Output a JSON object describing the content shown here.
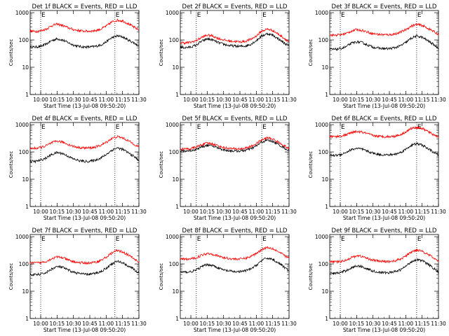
{
  "figure": {
    "xlabel": "Start Time (13-Jul-08 09:50:20)",
    "ylabel": "Counts/sec"
  },
  "axes": {
    "x_ticks": [
      "10:00",
      "10:15",
      "10:30",
      "10:45",
      "11:00",
      "11:15",
      "11:30"
    ],
    "y_ticks": [
      "1",
      "10",
      "100",
      "1000"
    ],
    "y_scale": "log",
    "ylim": [
      1,
      1200
    ],
    "xlim": [
      "09:50:20",
      "11:30:00"
    ]
  },
  "chart_data": [
    {
      "type": "line",
      "title": "Det 1f BLACK = Events, RED = LLD",
      "x": [
        "09:50",
        "09:55",
        "10:00",
        "10:05",
        "10:10",
        "10:15",
        "10:20",
        "10:25",
        "10:30",
        "10:35",
        "10:40",
        "10:45",
        "10:50",
        "10:55",
        "11:00",
        "11:05",
        "11:10",
        "11:15",
        "11:20",
        "11:25",
        "11:30"
      ],
      "series": [
        {
          "name": "Events",
          "color": "#000000",
          "values": [
            55,
            55,
            58,
            70,
            95,
            110,
            100,
            80,
            65,
            58,
            55,
            55,
            58,
            65,
            85,
            120,
            140,
            130,
            100,
            80,
            60
          ]
        },
        {
          "name": "LLD",
          "color": "#ff0000",
          "values": [
            210,
            205,
            215,
            250,
            330,
            380,
            340,
            280,
            240,
            220,
            210,
            210,
            220,
            250,
            320,
            450,
            530,
            500,
            400,
            300,
            230
          ]
        }
      ],
      "vlines": [
        "10:00",
        "11:08"
      ],
      "markers": [
        "E",
        "E"
      ]
    },
    {
      "type": "line",
      "title": "Det 2f BLACK = Events, RED = LLD",
      "x": [
        "09:50",
        "09:55",
        "10:00",
        "10:05",
        "10:10",
        "10:15",
        "10:20",
        "10:25",
        "10:30",
        "10:35",
        "10:40",
        "10:45",
        "10:50",
        "10:55",
        "11:00",
        "11:05",
        "11:10",
        "11:15",
        "11:20",
        "11:25",
        "11:30"
      ],
      "series": [
        {
          "name": "Events",
          "color": "#000000",
          "values": [
            55,
            52,
            55,
            65,
            90,
            110,
            100,
            80,
            70,
            62,
            60,
            58,
            60,
            70,
            95,
            140,
            170,
            150,
            110,
            80,
            60
          ]
        },
        {
          "name": "LLD",
          "color": "#ff0000",
          "values": [
            80,
            78,
            82,
            95,
            125,
            150,
            140,
            115,
            100,
            92,
            88,
            85,
            90,
            105,
            140,
            210,
            250,
            225,
            165,
            120,
            85
          ]
        }
      ],
      "vlines": [
        "10:05",
        "11:05"
      ],
      "markers": [
        "E",
        "E"
      ]
    },
    {
      "type": "line",
      "title": "Det 3f BLACK = Events, RED = LLD",
      "x": [
        "09:50",
        "09:55",
        "10:00",
        "10:05",
        "10:10",
        "10:15",
        "10:20",
        "10:25",
        "10:30",
        "10:35",
        "10:40",
        "10:45",
        "10:50",
        "10:55",
        "11:00",
        "11:05",
        "11:10",
        "11:15",
        "11:20",
        "11:25",
        "11:30"
      ],
      "series": [
        {
          "name": "Events",
          "color": "#000000",
          "values": [
            45,
            45,
            48,
            55,
            75,
            85,
            80,
            65,
            55,
            50,
            48,
            48,
            52,
            60,
            80,
            115,
            140,
            125,
            95,
            70,
            50
          ]
        },
        {
          "name": "LLD",
          "color": "#ff0000",
          "values": [
            150,
            150,
            155,
            170,
            210,
            240,
            225,
            195,
            170,
            160,
            155,
            155,
            165,
            190,
            240,
            320,
            370,
            340,
            270,
            210,
            160
          ]
        }
      ],
      "vlines": [
        "10:00",
        "11:10"
      ],
      "markers": [
        "E",
        "E"
      ]
    },
    {
      "type": "line",
      "title": "Det 4f BLACK = Events, RED = LLD",
      "x": [
        "09:50",
        "09:55",
        "10:00",
        "10:05",
        "10:10",
        "10:15",
        "10:20",
        "10:25",
        "10:30",
        "10:35",
        "10:40",
        "10:45",
        "10:50",
        "10:55",
        "11:00",
        "11:05",
        "11:10",
        "11:15",
        "11:20",
        "11:25",
        "11:30"
      ],
      "series": [
        {
          "name": "Events",
          "color": "#000000",
          "values": [
            45,
            45,
            50,
            60,
            80,
            95,
            88,
            70,
            55,
            48,
            45,
            45,
            50,
            60,
            80,
            115,
            140,
            125,
            95,
            70,
            50
          ]
        },
        {
          "name": "LLD",
          "color": "#ff0000",
          "values": [
            135,
            135,
            145,
            170,
            215,
            250,
            230,
            190,
            160,
            145,
            140,
            140,
            150,
            175,
            225,
            310,
            360,
            330,
            260,
            200,
            150
          ]
        }
      ],
      "vlines": [
        "10:00",
        "11:08"
      ],
      "markers": [
        "E",
        "E"
      ]
    },
    {
      "type": "line",
      "title": "Det 5f BLACK = Events, RED = LLD",
      "x": [
        "09:50",
        "09:55",
        "10:00",
        "10:05",
        "10:10",
        "10:15",
        "10:20",
        "10:25",
        "10:30",
        "10:35",
        "10:40",
        "10:45",
        "10:50",
        "10:55",
        "11:00",
        "11:05",
        "11:10",
        "11:15",
        "11:20",
        "11:25",
        "11:30"
      ],
      "series": [
        {
          "name": "Events",
          "color": "#000000",
          "values": [
            110,
            108,
            112,
            125,
            155,
            175,
            165,
            140,
            120,
            112,
            108,
            108,
            115,
            130,
            165,
            230,
            270,
            245,
            190,
            145,
            110
          ]
        },
        {
          "name": "LLD",
          "color": "#ff0000",
          "values": [
            130,
            128,
            132,
            150,
            185,
            210,
            198,
            168,
            145,
            135,
            130,
            130,
            138,
            158,
            200,
            275,
            330,
            300,
            230,
            175,
            130
          ]
        }
      ],
      "vlines": [
        "10:05",
        "11:05"
      ],
      "markers": [
        "E",
        "E"
      ]
    },
    {
      "type": "line",
      "title": "Det 6f BLACK = Events, RED = LLD",
      "x": [
        "09:50",
        "09:55",
        "10:00",
        "10:05",
        "10:10",
        "10:15",
        "10:20",
        "10:25",
        "10:30",
        "10:35",
        "10:40",
        "10:45",
        "10:50",
        "10:55",
        "11:00",
        "11:05",
        "11:10",
        "11:15",
        "11:20",
        "11:25",
        "11:30"
      ],
      "series": [
        {
          "name": "Events",
          "color": "#000000",
          "values": [
            75,
            75,
            80,
            95,
            120,
            135,
            125,
            105,
            90,
            82,
            78,
            78,
            82,
            95,
            125,
            175,
            200,
            180,
            135,
            100,
            75
          ]
        },
        {
          "name": "LLD",
          "color": "#ff0000",
          "values": [
            370,
            365,
            380,
            420,
            500,
            560,
            530,
            460,
            400,
            375,
            365,
            365,
            380,
            430,
            540,
            720,
            800,
            730,
            570,
            440,
            360
          ]
        }
      ],
      "vlines": [
        "10:00",
        "11:10"
      ],
      "markers": [
        "E",
        "E"
      ]
    },
    {
      "type": "line",
      "title": "Det 7f BLACK = Events, RED = LLD",
      "x": [
        "09:50",
        "09:55",
        "10:00",
        "10:05",
        "10:10",
        "10:15",
        "10:20",
        "10:25",
        "10:30",
        "10:35",
        "10:40",
        "10:45",
        "10:50",
        "10:55",
        "11:00",
        "11:05",
        "11:10",
        "11:15",
        "11:20",
        "11:25",
        "11:30"
      ],
      "series": [
        {
          "name": "Events",
          "color": "#000000",
          "values": [
            40,
            40,
            42,
            48,
            65,
            80,
            75,
            60,
            50,
            45,
            42,
            42,
            45,
            52,
            70,
            100,
            125,
            112,
            85,
            65,
            45
          ]
        },
        {
          "name": "LLD",
          "color": "#ff0000",
          "values": [
            110,
            108,
            112,
            125,
            155,
            180,
            170,
            140,
            120,
            112,
            108,
            108,
            115,
            135,
            175,
            250,
            310,
            280,
            215,
            160,
            115
          ]
        }
      ],
      "vlines": [
        "10:00",
        "11:08"
      ],
      "markers": [
        "E",
        "E"
      ]
    },
    {
      "type": "line",
      "title": "Det 8f BLACK = Events, RED = LLD",
      "x": [
        "09:50",
        "09:55",
        "10:00",
        "10:05",
        "10:10",
        "10:15",
        "10:20",
        "10:25",
        "10:30",
        "10:35",
        "10:40",
        "10:45",
        "10:50",
        "10:55",
        "11:00",
        "11:05",
        "11:10",
        "11:15",
        "11:20",
        "11:25",
        "11:30"
      ],
      "series": [
        {
          "name": "Events",
          "color": "#000000",
          "values": [
            50,
            50,
            52,
            60,
            80,
            95,
            88,
            72,
            60,
            55,
            52,
            52,
            56,
            65,
            90,
            135,
            165,
            148,
            110,
            80,
            55
          ]
        },
        {
          "name": "LLD",
          "color": "#ff0000",
          "values": [
            150,
            148,
            152,
            170,
            210,
            245,
            230,
            195,
            170,
            158,
            152,
            152,
            162,
            188,
            245,
            340,
            410,
            370,
            285,
            215,
            160
          ]
        }
      ],
      "vlines": [
        "10:05",
        "11:05"
      ],
      "markers": [
        "E",
        "E"
      ]
    },
    {
      "type": "line",
      "title": "Det 9f BLACK = Events, RED = LLD",
      "x": [
        "09:50",
        "09:55",
        "10:00",
        "10:05",
        "10:10",
        "10:15",
        "10:20",
        "10:25",
        "10:30",
        "10:35",
        "10:40",
        "10:45",
        "10:50",
        "10:55",
        "11:00",
        "11:05",
        "11:10",
        "11:15",
        "11:20",
        "11:25",
        "11:30"
      ],
      "series": [
        {
          "name": "Events",
          "color": "#000000",
          "values": [
            45,
            45,
            48,
            56,
            72,
            85,
            80,
            65,
            55,
            50,
            48,
            48,
            52,
            60,
            82,
            120,
            148,
            132,
            100,
            72,
            50
          ]
        },
        {
          "name": "LLD",
          "color": "#ff0000",
          "values": [
            120,
            118,
            122,
            138,
            170,
            200,
            188,
            158,
            138,
            128,
            122,
            122,
            130,
            150,
            195,
            270,
            330,
            300,
            230,
            170,
            125
          ]
        }
      ],
      "vlines": [
        "10:00",
        "11:10"
      ],
      "markers": [
        "E",
        "E"
      ]
    }
  ]
}
